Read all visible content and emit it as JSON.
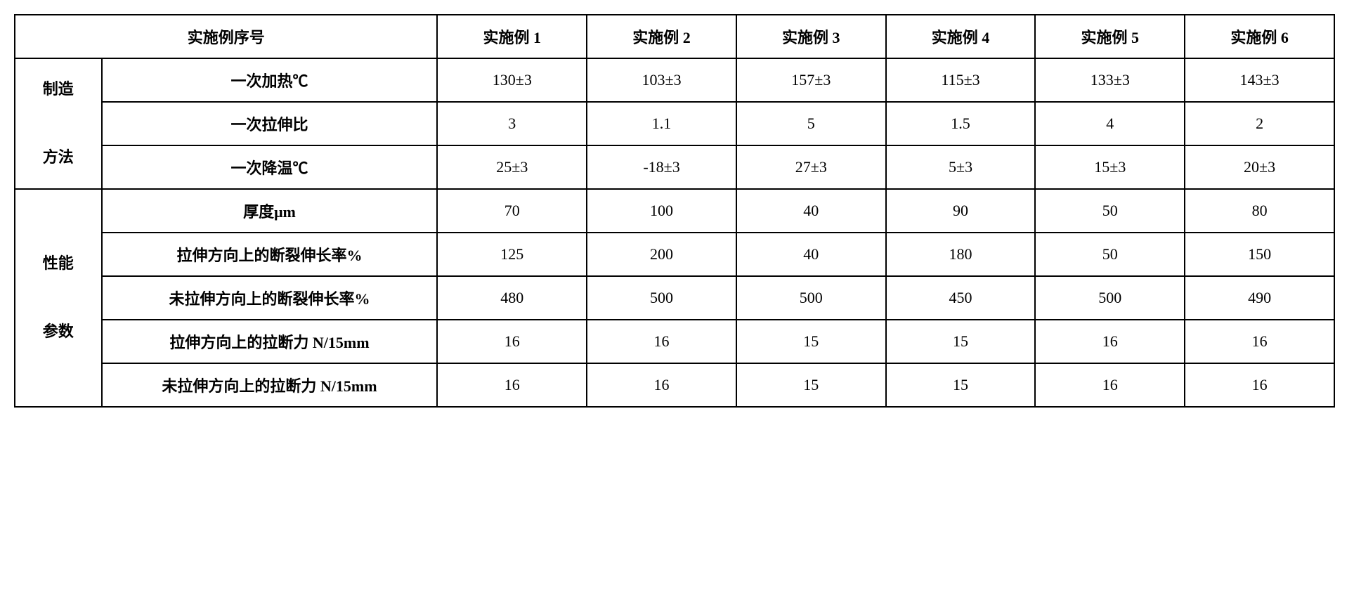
{
  "header": {
    "serial_col": "实施例序号",
    "cols": [
      "实施例 1",
      "实施例 2",
      "实施例 3",
      "实施例 4",
      "实施例 5",
      "实施例 6"
    ]
  },
  "group1": {
    "label": "制造\n\n方法",
    "rows": [
      {
        "label": "一次加热℃",
        "values": [
          "130±3",
          "103±3",
          "157±3",
          "115±3",
          "133±3",
          "143±3"
        ]
      },
      {
        "label": "一次拉伸比",
        "values": [
          "3",
          "1.1",
          "5",
          "1.5",
          "4",
          "2"
        ]
      },
      {
        "label": "一次降温℃",
        "values": [
          "25±3",
          "-18±3",
          "27±3",
          "5±3",
          "15±3",
          "20±3"
        ]
      }
    ]
  },
  "group2": {
    "label": "性能\n\n参数",
    "rows": [
      {
        "label": "厚度μm",
        "values": [
          "70",
          "100",
          "40",
          "90",
          "50",
          "80"
        ]
      },
      {
        "label": "拉伸方向上的断裂伸长率%",
        "values": [
          "125",
          "200",
          "40",
          "180",
          "50",
          "150"
        ]
      },
      {
        "label": "未拉伸方向上的断裂伸长率%",
        "values": [
          "480",
          "500",
          "500",
          "450",
          "500",
          "490"
        ]
      },
      {
        "label": "拉伸方向上的拉断力 N/15mm",
        "values": [
          "16",
          "16",
          "15",
          "15",
          "16",
          "16"
        ]
      },
      {
        "label": "未拉伸方向上的拉断力 N/15mm",
        "values": [
          "16",
          "16",
          "15",
          "15",
          "16",
          "16"
        ]
      }
    ]
  }
}
